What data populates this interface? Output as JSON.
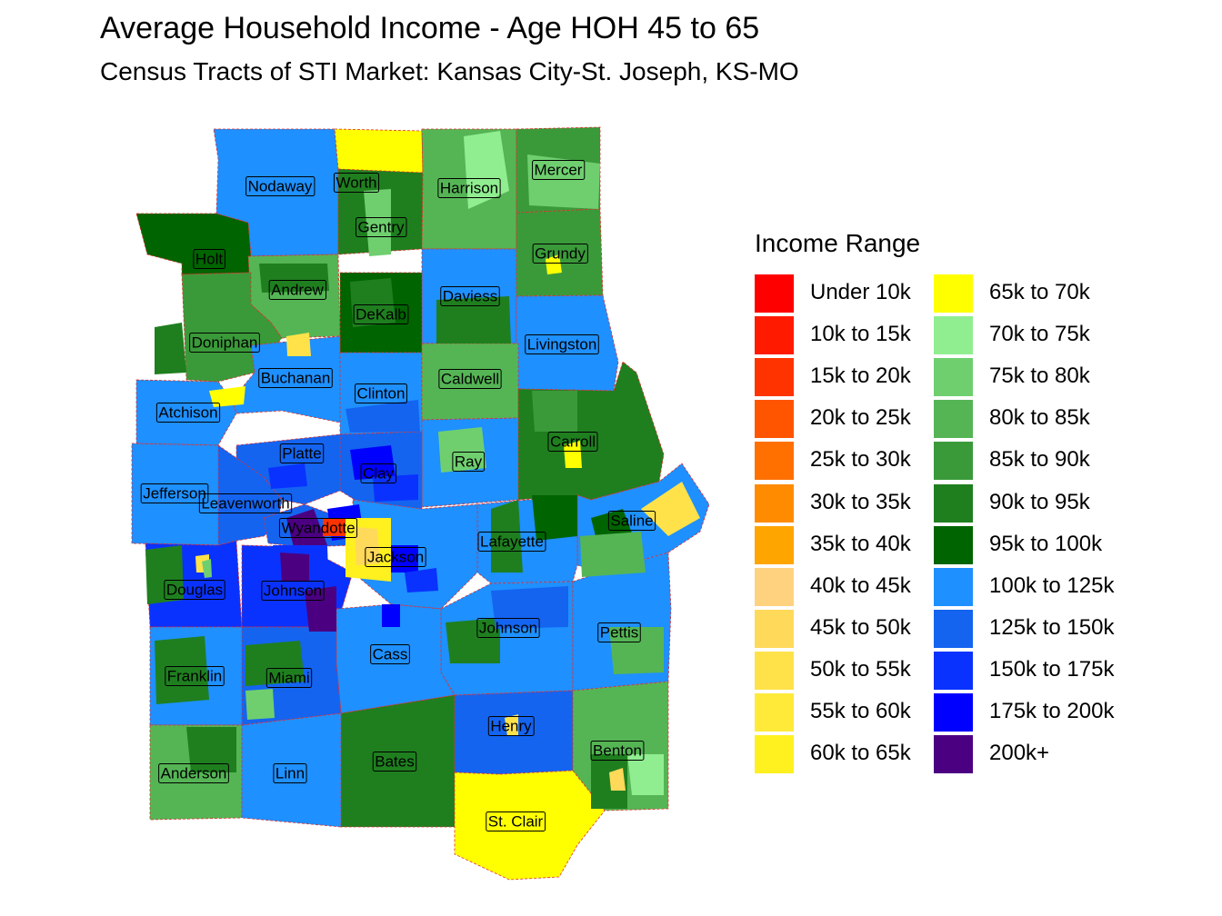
{
  "title": "Average Household Income - Age HOH 45 to 65",
  "subtitle": "Census Tracts of STI Market: Kansas City-St. Joseph, KS-MO",
  "legend": {
    "title": "Income Range",
    "items": [
      {
        "label": "Under 10k",
        "color": "#FF0000"
      },
      {
        "label": "10k to 15k",
        "color": "#FF1A00"
      },
      {
        "label": "15k to 20k",
        "color": "#FF3300"
      },
      {
        "label": "20k to 25k",
        "color": "#FF5500"
      },
      {
        "label": "25k to 30k",
        "color": "#FF7000"
      },
      {
        "label": "30k to 35k",
        "color": "#FF8C00"
      },
      {
        "label": "35k to 40k",
        "color": "#FFA500"
      },
      {
        "label": "40k to 45k",
        "color": "#FFD27F"
      },
      {
        "label": "45k to 50k",
        "color": "#FFD95A"
      },
      {
        "label": "50k to 55k",
        "color": "#FFE24A"
      },
      {
        "label": "55k to 60k",
        "color": "#FFEA3A"
      },
      {
        "label": "60k to 65k",
        "color": "#FFF020"
      },
      {
        "label": "65k to 70k",
        "color": "#FFFF00"
      },
      {
        "label": "70k to 75k",
        "color": "#90EE90"
      },
      {
        "label": "75k to 80k",
        "color": "#6FCF6F"
      },
      {
        "label": "80k to 85k",
        "color": "#55B555"
      },
      {
        "label": "85k to 90k",
        "color": "#3A9A3A"
      },
      {
        "label": "90k to 95k",
        "color": "#1F7F1F"
      },
      {
        "label": "95k to 100k",
        "color": "#006400"
      },
      {
        "label": "100k to 125k",
        "color": "#1E90FF"
      },
      {
        "label": "125k to 150k",
        "color": "#1464F0"
      },
      {
        "label": "150k to 175k",
        "color": "#0A32FF"
      },
      {
        "label": "175k to 200k",
        "color": "#0000FF"
      },
      {
        "label": "200k+",
        "color": "#4B0082"
      }
    ]
  },
  "counties": [
    {
      "name": "Worth",
      "fill": "#FFFF00"
    },
    {
      "name": "Nodaway",
      "fill": "#1E90FF"
    },
    {
      "name": "Harrison",
      "fill": "#55B555"
    },
    {
      "name": "Mercer",
      "fill": "#3A9A3A"
    },
    {
      "name": "Gentry",
      "fill": "#1F7F1F"
    },
    {
      "name": "Holt",
      "fill": "#006400"
    },
    {
      "name": "Grundy",
      "fill": "#3A9A3A"
    },
    {
      "name": "Andrew",
      "fill": "#55B555"
    },
    {
      "name": "Daviess",
      "fill": "#1E90FF"
    },
    {
      "name": "DeKalb",
      "fill": "#006400"
    },
    {
      "name": "Doniphan",
      "fill": "#3A9A3A"
    },
    {
      "name": "Livingston",
      "fill": "#1E90FF"
    },
    {
      "name": "Buchanan",
      "fill": "#1E90FF"
    },
    {
      "name": "Caldwell",
      "fill": "#55B555"
    },
    {
      "name": "Atchison",
      "fill": "#1E90FF"
    },
    {
      "name": "Clinton",
      "fill": "#1E90FF"
    },
    {
      "name": "Carroll",
      "fill": "#1F7F1F"
    },
    {
      "name": "Platte",
      "fill": "#1464F0"
    },
    {
      "name": "Ray",
      "fill": "#1E90FF"
    },
    {
      "name": "Clay",
      "fill": "#1464F0"
    },
    {
      "name": "Jefferson",
      "fill": "#1E90FF"
    },
    {
      "name": "Leavenworth",
      "fill": "#1464F0"
    },
    {
      "name": "Saline",
      "fill": "#1E90FF"
    },
    {
      "name": "Wyandotte",
      "fill": "#1464F0"
    },
    {
      "name": "Lafayette",
      "fill": "#1E90FF"
    },
    {
      "name": "Jackson",
      "fill": "#1E90FF"
    },
    {
      "name": "Douglas",
      "fill": "#0A32FF"
    },
    {
      "name": "Johnson",
      "fill": "#0A32FF"
    },
    {
      "name": "Johnson",
      "fill": "#1E90FF"
    },
    {
      "name": "Pettis",
      "fill": "#1E90FF"
    },
    {
      "name": "Cass",
      "fill": "#1E90FF"
    },
    {
      "name": "Franklin",
      "fill": "#1E90FF"
    },
    {
      "name": "Miami",
      "fill": "#1464F0"
    },
    {
      "name": "Henry",
      "fill": "#1464F0"
    },
    {
      "name": "Benton",
      "fill": "#55B555"
    },
    {
      "name": "Bates",
      "fill": "#1F7F1F"
    },
    {
      "name": "Anderson",
      "fill": "#55B555"
    },
    {
      "name": "Linn",
      "fill": "#1E90FF"
    },
    {
      "name": "St. Clair",
      "fill": "#FFFF00"
    }
  ],
  "border_color": "#E03030"
}
